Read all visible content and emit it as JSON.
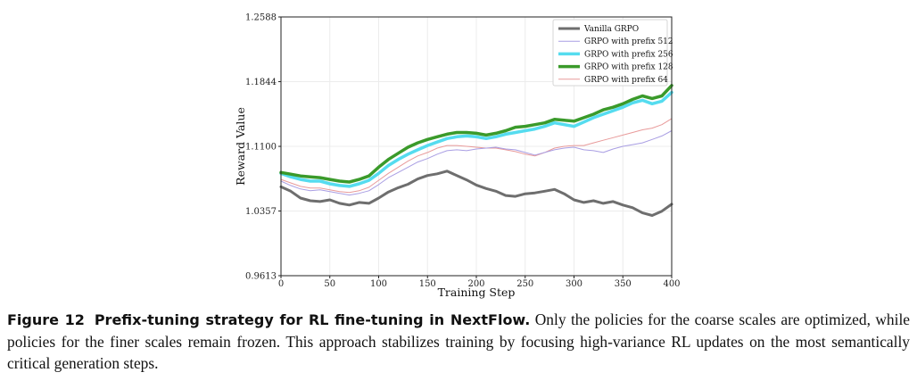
{
  "chart_data": {
    "type": "line",
    "xlabel": "Training Step",
    "ylabel": "Reward Value",
    "xlim": [
      0,
      400
    ],
    "ylim": [
      0.9613,
      1.2588
    ],
    "xticks": [
      0,
      50,
      100,
      150,
      200,
      250,
      300,
      350,
      400
    ],
    "xtick_labels": [
      "0",
      "50",
      "100",
      "150",
      "200",
      "250",
      "300",
      "350",
      "400"
    ],
    "yticks": [
      0.9613,
      1.0357,
      1.11,
      1.1844,
      1.2588
    ],
    "ytick_labels": [
      "0.9613",
      "1.0357",
      "1.1100",
      "1.1844",
      "1.2588"
    ],
    "grid": true,
    "legend_position": "top-right",
    "series": [
      {
        "name": "Vanilla GRPO",
        "color": "#6e6e6e",
        "x": [
          0,
          10,
          20,
          30,
          40,
          50,
          60,
          70,
          80,
          90,
          100,
          110,
          120,
          130,
          140,
          150,
          160,
          170,
          180,
          190,
          200,
          210,
          220,
          230,
          240,
          250,
          260,
          270,
          280,
          290,
          300,
          310,
          320,
          330,
          340,
          350,
          360,
          370,
          380,
          390,
          400
        ],
        "values": [
          1.0635,
          1.0585,
          1.0505,
          1.0475,
          1.0465,
          1.0485,
          1.0445,
          1.0425,
          1.0455,
          1.0445,
          1.0505,
          1.0575,
          1.0625,
          1.0665,
          1.0725,
          1.0765,
          1.0785,
          1.0815,
          1.0765,
          1.0715,
          1.0655,
          1.0615,
          1.0585,
          1.0535,
          1.0525,
          1.0555,
          1.0565,
          1.0585,
          1.0605,
          1.0555,
          1.0485,
          1.0455,
          1.0475,
          1.0445,
          1.0465,
          1.0425,
          1.0395,
          1.0335,
          1.0305,
          1.0355,
          1.0435
        ]
      },
      {
        "name": "GRPO with prefix 512",
        "color": "#a99ee3",
        "x": [
          0,
          10,
          20,
          30,
          40,
          50,
          60,
          70,
          80,
          90,
          100,
          110,
          120,
          130,
          140,
          150,
          160,
          170,
          180,
          190,
          200,
          210,
          220,
          230,
          240,
          250,
          260,
          270,
          280,
          290,
          300,
          310,
          320,
          330,
          340,
          350,
          360,
          370,
          380,
          390,
          400
        ],
        "values": [
          1.07,
          1.065,
          1.061,
          1.059,
          1.06,
          1.058,
          1.056,
          1.054,
          1.056,
          1.059,
          1.066,
          1.074,
          1.08,
          1.086,
          1.092,
          1.096,
          1.101,
          1.105,
          1.106,
          1.105,
          1.107,
          1.108,
          1.109,
          1.107,
          1.106,
          1.103,
          1.1,
          1.103,
          1.106,
          1.108,
          1.109,
          1.106,
          1.105,
          1.103,
          1.107,
          1.11,
          1.112,
          1.114,
          1.118,
          1.122,
          1.128
        ]
      },
      {
        "name": "GRPO with prefix 256",
        "color": "#55dcef",
        "x": [
          0,
          10,
          20,
          30,
          40,
          50,
          60,
          70,
          80,
          90,
          100,
          110,
          120,
          130,
          140,
          150,
          160,
          170,
          180,
          190,
          200,
          210,
          220,
          230,
          240,
          250,
          260,
          270,
          280,
          290,
          300,
          310,
          320,
          330,
          340,
          350,
          360,
          370,
          380,
          390,
          400
        ],
        "values": [
          1.079,
          1.075,
          1.072,
          1.07,
          1.07,
          1.067,
          1.065,
          1.064,
          1.067,
          1.071,
          1.079,
          1.088,
          1.095,
          1.101,
          1.106,
          1.111,
          1.115,
          1.119,
          1.121,
          1.122,
          1.121,
          1.119,
          1.121,
          1.124,
          1.126,
          1.128,
          1.13,
          1.133,
          1.137,
          1.135,
          1.133,
          1.138,
          1.143,
          1.147,
          1.151,
          1.155,
          1.16,
          1.163,
          1.159,
          1.162,
          1.172
        ]
      },
      {
        "name": "GRPO with prefix 128",
        "color": "#3a9a2a",
        "x": [
          0,
          10,
          20,
          30,
          40,
          50,
          60,
          70,
          80,
          90,
          100,
          110,
          120,
          130,
          140,
          150,
          160,
          170,
          180,
          190,
          200,
          210,
          220,
          230,
          240,
          250,
          260,
          270,
          280,
          290,
          300,
          310,
          320,
          330,
          340,
          350,
          360,
          370,
          380,
          390,
          400
        ],
        "values": [
          1.08,
          1.078,
          1.076,
          1.075,
          1.074,
          1.072,
          1.07,
          1.069,
          1.072,
          1.076,
          1.086,
          1.095,
          1.102,
          1.109,
          1.114,
          1.118,
          1.121,
          1.124,
          1.126,
          1.126,
          1.125,
          1.123,
          1.125,
          1.128,
          1.132,
          1.133,
          1.135,
          1.137,
          1.141,
          1.14,
          1.139,
          1.143,
          1.147,
          1.152,
          1.155,
          1.159,
          1.164,
          1.168,
          1.165,
          1.168,
          1.18
        ]
      },
      {
        "name": "GRPO with prefix 64",
        "color": "#e89a9a",
        "x": [
          0,
          10,
          20,
          30,
          40,
          50,
          60,
          70,
          80,
          90,
          100,
          110,
          120,
          130,
          140,
          150,
          160,
          170,
          180,
          190,
          200,
          210,
          220,
          230,
          240,
          250,
          260,
          270,
          280,
          290,
          300,
          310,
          320,
          330,
          340,
          350,
          360,
          370,
          380,
          390,
          400
        ],
        "values": [
          1.072,
          1.068,
          1.064,
          1.062,
          1.062,
          1.06,
          1.058,
          1.057,
          1.059,
          1.063,
          1.071,
          1.079,
          1.086,
          1.093,
          1.099,
          1.103,
          1.108,
          1.111,
          1.111,
          1.11,
          1.109,
          1.108,
          1.108,
          1.106,
          1.104,
          1.101,
          1.099,
          1.103,
          1.108,
          1.11,
          1.111,
          1.111,
          1.114,
          1.117,
          1.12,
          1.123,
          1.126,
          1.129,
          1.131,
          1.135,
          1.142
        ]
      }
    ]
  },
  "caption": {
    "label": "Figure 12",
    "title": "Prefix-tuning strategy for RL fine-tuning in NextFlow.",
    "body": "Only the policies for the coarse scales are optimized, while policies for the finer scales remain frozen. This approach stabilizes training by focusing high-variance RL updates on the most semantically critical generation steps."
  }
}
